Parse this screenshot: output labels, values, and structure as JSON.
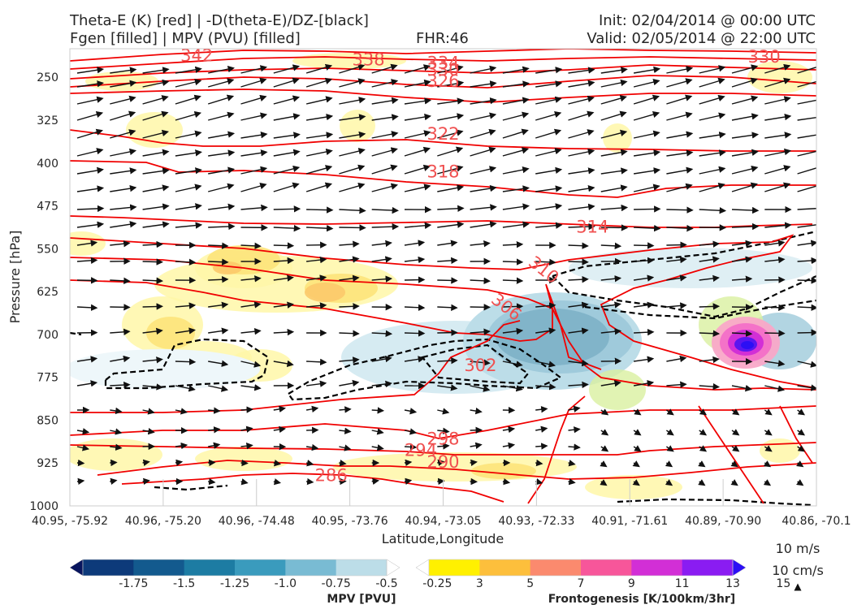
{
  "header": {
    "title_line1": "Theta-E (K) [red] | -D(theta-E)/DZ-[black]",
    "title_line2": "Fgen [filled] | MPV (PVU) [filled]",
    "fhr": "FHR:46",
    "init": "Init: 02/04/2014 @ 00:00 UTC",
    "valid": "Valid: 02/05/2014 @ 22:00 UTC"
  },
  "chart_data": {
    "type": "cross-section",
    "xlabel": "Latitude,Longitude",
    "ylabel": "Pressure [hPa]",
    "ylim": [
      1000,
      200
    ],
    "x_ticks": [
      "40.95, -75.92",
      "40.96, -75.20",
      "40.96, -74.48",
      "40.95, -73.76",
      "40.94, -73.05",
      "40.93, -72.33",
      "40.91, -71.61",
      "40.89, -70.90",
      "40.86, -70.1"
    ],
    "y_ticks": [
      250,
      325,
      400,
      475,
      550,
      625,
      700,
      775,
      850,
      925,
      1000
    ],
    "theta_e_contours": [
      {
        "label": "342",
        "p": 212,
        "x": 0.17
      },
      {
        "label": "338",
        "p": 219,
        "x": 0.4
      },
      {
        "label": "334",
        "p": 225,
        "x": 0.5
      },
      {
        "label": "330",
        "p": 237,
        "x": 0.5
      },
      {
        "label": "326",
        "p": 257,
        "x": 0.5
      },
      {
        "label": "322",
        "p": 349,
        "x": 0.5
      },
      {
        "label": "318",
        "p": 415,
        "x": 0.5
      },
      {
        "label": "314",
        "p": 512,
        "x": 0.7
      },
      {
        "label": "310",
        "p": 585,
        "x": 0.63
      },
      {
        "label": "306",
        "p": 650,
        "x": 0.58
      },
      {
        "label": "302",
        "p": 754,
        "x": 0.55
      },
      {
        "label": "298",
        "p": 883,
        "x": 0.5
      },
      {
        "label": "294",
        "p": 903,
        "x": 0.47
      },
      {
        "label": "290",
        "p": 923,
        "x": 0.5
      },
      {
        "label": "286",
        "p": 947,
        "x": 0.35
      },
      {
        "label": "330",
        "p": 214,
        "x": 0.93
      }
    ],
    "mpv_colorbar": {
      "label": "MPV [PVU]",
      "ticks": [
        "-1.75",
        "-1.5",
        "-1.25",
        "-1.0",
        "-0.75",
        "-0.5",
        "-0.25"
      ],
      "colors": [
        "#08155e",
        "#0d3a7a",
        "#135a8e",
        "#1d7ca3",
        "#3a9bbd",
        "#79bbd3",
        "#bcdde8",
        "#ffffff"
      ]
    },
    "fgen_colorbar": {
      "label": "Frontogenesis [K/100km/3hr]",
      "ticks": [
        "3",
        "5",
        "7",
        "9",
        "11",
        "13",
        "15"
      ],
      "colors": [
        "#ffffff",
        "#fff000",
        "#fdbf3c",
        "#fb8a6e",
        "#f7569a",
        "#d22fd6",
        "#8a1cf2",
        "#2c0ff5"
      ]
    },
    "wind_scale": {
      "h_label": "10 m/s",
      "v_label": "10 cm/s"
    }
  }
}
